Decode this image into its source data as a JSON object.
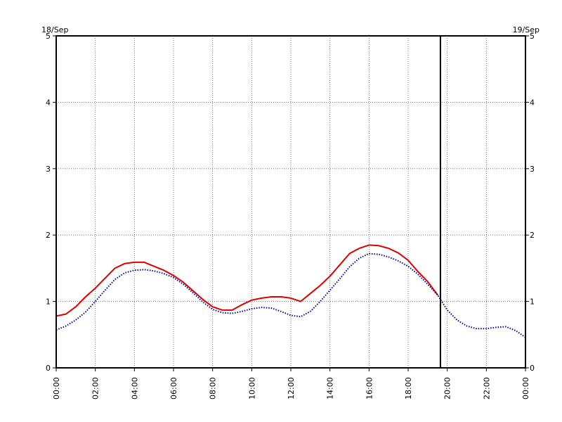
{
  "chart_data": {
    "type": "line",
    "left_date_label": "18/Sep",
    "right_date_label": "19/Sep",
    "xlim_hours": [
      0,
      24
    ],
    "ylim": [
      0,
      5
    ],
    "yticks": [
      "0",
      "1",
      "2",
      "3",
      "4",
      "5"
    ],
    "xticks": [
      {
        "hour": 0,
        "label": "00:00"
      },
      {
        "hour": 2,
        "label": "02:00"
      },
      {
        "hour": 4,
        "label": "04:00"
      },
      {
        "hour": 6,
        "label": "06:00"
      },
      {
        "hour": 8,
        "label": "08:00"
      },
      {
        "hour": 10,
        "label": "10:00"
      },
      {
        "hour": 12,
        "label": "12:00"
      },
      {
        "hour": 14,
        "label": "14:00"
      },
      {
        "hour": 16,
        "label": "16:00"
      },
      {
        "hour": 18,
        "label": "18:00"
      },
      {
        "hour": 20,
        "label": "20:00"
      },
      {
        "hour": 22,
        "label": "22:00"
      },
      {
        "hour": 24,
        "label": "00:00"
      }
    ],
    "grid": true,
    "now_marker_hour": 19.65,
    "series": [
      {
        "color": "#dd0000",
        "style": "solid",
        "x": [
          0,
          0.5,
          1,
          1.5,
          2,
          2.5,
          3,
          3.5,
          4,
          4.5,
          5,
          5.5,
          6,
          6.5,
          7,
          7.5,
          8,
          8.5,
          9,
          9.5,
          10,
          10.5,
          11,
          11.5,
          12,
          12.5,
          13,
          13.5,
          14,
          14.5,
          15,
          15.5,
          16,
          16.5,
          17,
          17.5,
          18,
          18.5,
          19,
          19.5
        ],
        "y": [
          0.78,
          0.81,
          0.92,
          1.07,
          1.2,
          1.35,
          1.5,
          1.57,
          1.59,
          1.59,
          1.53,
          1.47,
          1.39,
          1.29,
          1.16,
          1.03,
          0.92,
          0.87,
          0.87,
          0.95,
          1.02,
          1.05,
          1.07,
          1.07,
          1.05,
          1.0,
          1.12,
          1.24,
          1.38,
          1.55,
          1.72,
          1.8,
          1.85,
          1.84,
          1.8,
          1.73,
          1.62,
          1.45,
          1.3,
          1.1
        ]
      },
      {
        "color": "#0000aa",
        "style": "dotted",
        "x": [
          0,
          0.5,
          1,
          1.5,
          2,
          2.5,
          3,
          3.5,
          4,
          4.5,
          5,
          5.5,
          6,
          6.5,
          7,
          7.5,
          8,
          8.5,
          9,
          9.5,
          10,
          10.5,
          11,
          11.5,
          12,
          12.5,
          13,
          13.5,
          14,
          14.5,
          15,
          15.5,
          16,
          16.5,
          17,
          17.5,
          18,
          18.5,
          19,
          19.5,
          20,
          20.5,
          21,
          21.5,
          22,
          22.5,
          23,
          23.5,
          24
        ],
        "y": [
          0.57,
          0.63,
          0.72,
          0.84,
          1.0,
          1.17,
          1.33,
          1.43,
          1.47,
          1.48,
          1.46,
          1.42,
          1.36,
          1.26,
          1.13,
          0.99,
          0.88,
          0.83,
          0.82,
          0.85,
          0.89,
          0.91,
          0.9,
          0.85,
          0.79,
          0.77,
          0.85,
          1.0,
          1.17,
          1.34,
          1.52,
          1.65,
          1.72,
          1.71,
          1.67,
          1.61,
          1.53,
          1.41,
          1.26,
          1.1,
          0.87,
          0.72,
          0.63,
          0.59,
          0.59,
          0.61,
          0.62,
          0.56,
          0.46
        ]
      }
    ]
  }
}
